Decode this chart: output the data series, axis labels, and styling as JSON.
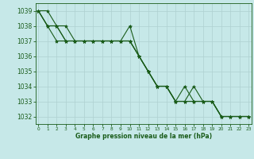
{
  "title": "Graphe pression niveau de la mer (hPa)",
  "bg_color": "#c6e8e8",
  "grid_color": "#aed0d0",
  "line_color": "#1a5c1a",
  "xlim": [
    -0.3,
    23.3
  ],
  "ylim": [
    1031.5,
    1039.5
  ],
  "yticks": [
    1032,
    1033,
    1034,
    1035,
    1036,
    1037,
    1038,
    1039
  ],
  "xticks": [
    0,
    1,
    2,
    3,
    4,
    5,
    6,
    7,
    8,
    9,
    10,
    11,
    12,
    13,
    14,
    15,
    16,
    17,
    18,
    19,
    20,
    21,
    22,
    23
  ],
  "line1_x": [
    0,
    1,
    2,
    3,
    4,
    5,
    6,
    7,
    8,
    9,
    10,
    11,
    12,
    13,
    14,
    15,
    16,
    17,
    18,
    19,
    20,
    21,
    22,
    23
  ],
  "line1_y": [
    1039,
    1038,
    1038,
    1037,
    1037,
    1037,
    1037,
    1037,
    1037,
    1037,
    1038,
    1036,
    1035,
    1034,
    1034,
    1033,
    1033,
    1034,
    1033,
    1033,
    1032,
    1032,
    1032,
    1032
  ],
  "line2_x": [
    0,
    1,
    2,
    3,
    4,
    5,
    6,
    7,
    8,
    9,
    10,
    11,
    12,
    13,
    14,
    15,
    16,
    17,
    18,
    19,
    20,
    21,
    22,
    23
  ],
  "line2_y": [
    1039,
    1038,
    1038,
    1037,
    1037,
    1037,
    1037,
    1037,
    1037,
    1037,
    1037,
    1036,
    1035,
    1034,
    1034,
    1033,
    1033,
    1033,
    1033,
    1033,
    1032,
    1032,
    1032,
    1032
  ],
  "line3_x": [
    0,
    1,
    2,
    3,
    4,
    5,
    6,
    7,
    8,
    9,
    10,
    11,
    12,
    13,
    14,
    15,
    16,
    17,
    18,
    19,
    20,
    21,
    22,
    23
  ],
  "line3_y": [
    1039,
    1038,
    1037,
    1037,
    1037,
    1037,
    1037,
    1037,
    1037,
    1037,
    1037,
    1036,
    1035,
    1034,
    1034,
    1033,
    1033,
    1033,
    1033,
    1033,
    1032,
    1032,
    1032,
    1032
  ],
  "line4_x": [
    0,
    1,
    2,
    3,
    4,
    5,
    6,
    7,
    8,
    9,
    10,
    11,
    12,
    13,
    14,
    15,
    16,
    17,
    18,
    19,
    20,
    21,
    22,
    23
  ],
  "line4_y": [
    1039,
    1039,
    1038,
    1038,
    1037,
    1037,
    1037,
    1037,
    1037,
    1037,
    1037,
    1036,
    1035,
    1034,
    1034,
    1033,
    1034,
    1033,
    1033,
    1033,
    1032,
    1032,
    1032,
    1032
  ],
  "marker": "*",
  "markersize": 3,
  "linewidth": 0.8,
  "ytick_fontsize": 5.5,
  "xtick_fontsize": 4.2,
  "xlabel_fontsize": 5.5
}
